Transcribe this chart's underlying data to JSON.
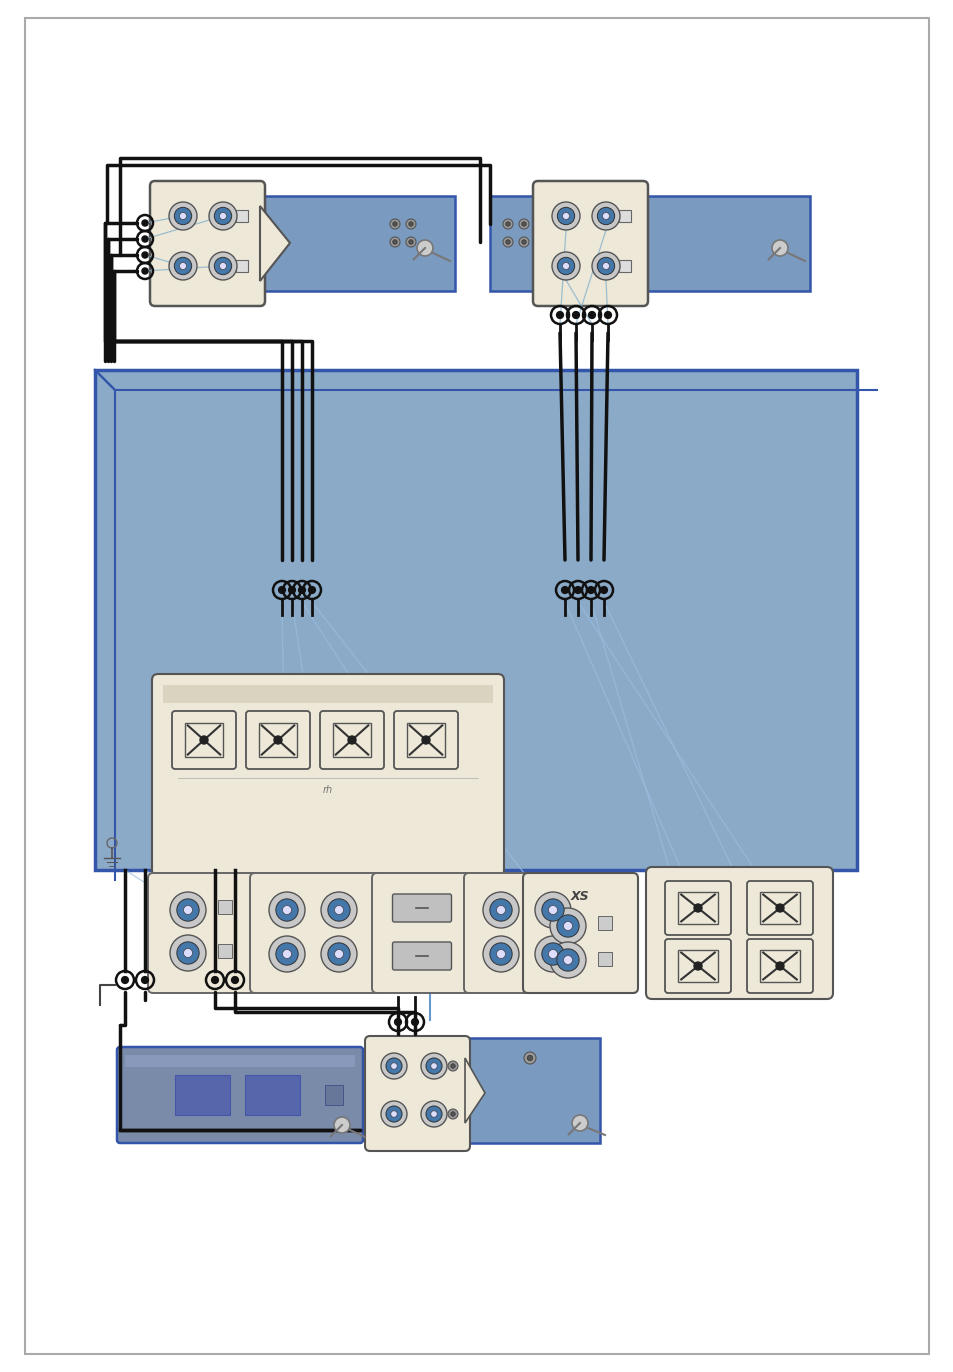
{
  "bg_color": "#ffffff",
  "blue_main": "#8BAAC8",
  "blue_device": "#7A9ABF",
  "device_bg": "#EDE8D8",
  "wire_black": "#111111",
  "wire_blue_light": "#A0B8D0",
  "border_color": "#999999",
  "panel_border": "#4466AA",
  "device_border": "#555555",
  "socket_outer": "#cccccc",
  "socket_mid": "#4477AA",
  "socket_inner": "#ffffff",
  "plug_white": "#f0f0f0",
  "plug_dark": "#222222",
  "small_terminal": "#888888"
}
